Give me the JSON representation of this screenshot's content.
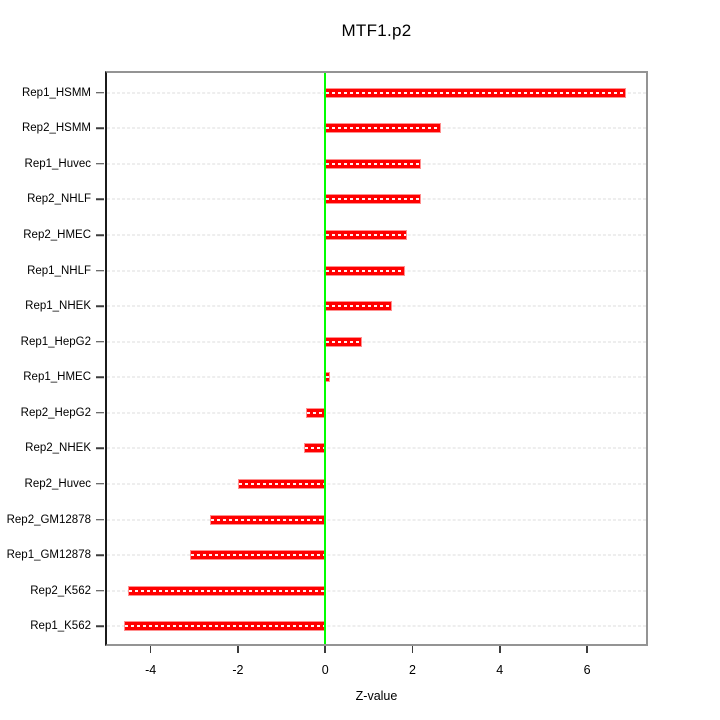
{
  "chart_data": {
    "type": "bar",
    "orientation": "horizontal",
    "title": "MTF1.p2",
    "xlabel": "Z-value",
    "ylabel": "",
    "categories": [
      "Rep1_HSMM",
      "Rep2_HSMM",
      "Rep1_Huvec",
      "Rep2_NHLF",
      "Rep2_HMEC",
      "Rep1_NHLF",
      "Rep1_NHEK",
      "Rep1_HepG2",
      "Rep1_HMEC",
      "Rep2_HepG2",
      "Rep2_NHEK",
      "Rep2_Huvec",
      "Rep2_GM12878",
      "Rep1_GM12878",
      "Rep2_K562",
      "Rep1_K562"
    ],
    "values": [
      6.9,
      2.65,
      2.2,
      2.2,
      1.87,
      1.83,
      1.54,
      0.84,
      0.12,
      -0.45,
      -0.49,
      -2.0,
      -2.65,
      -3.09,
      -4.53,
      -4.6
    ],
    "xticks": [
      -4,
      -2,
      0,
      2,
      4,
      6
    ],
    "xlim": [
      -5.0,
      7.35
    ],
    "grid": true,
    "legend": false,
    "colors": {
      "bar": "#ff0000",
      "bar_edge": "#ff8f8f",
      "zero_line": "#00ff00",
      "gridline": "#dcdcdc",
      "box_border": "#949494",
      "axis_line": "#1b1b1b",
      "tick": "#3c3c3c",
      "text": "#000000",
      "background": "#ffffff"
    }
  }
}
